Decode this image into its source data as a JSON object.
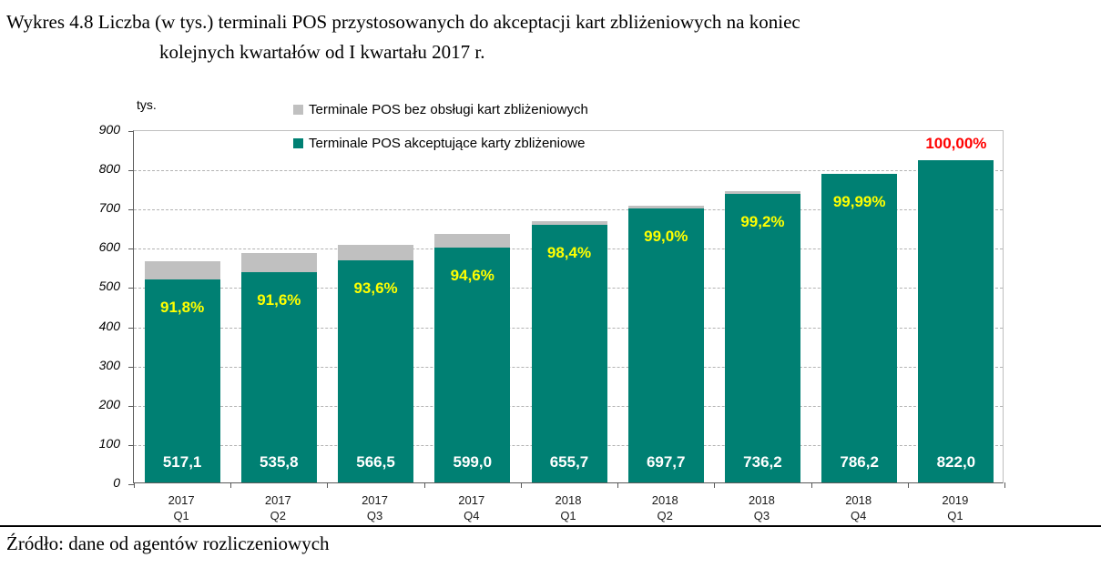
{
  "header": {
    "line1": "Wykres 4.8 Liczba (w tys.) terminali POS przystosowanych do akceptacji kart zbliżeniowych na koniec",
    "line2": "kolejnych kwartałów od I kwartału 2017 r."
  },
  "source": "Źródło: dane od agentów rozliczeniowych",
  "chart_data": {
    "type": "bar",
    "subtype": "stacked",
    "title": "Wykres 4.8 Liczba (w tys.) terminali POS przystosowanych do akceptacji kart zbliżeniowych na koniec kolejnych kwartałów od I kwartału 2017 r.",
    "y_unit": "tys.",
    "ylim": [
      0,
      900
    ],
    "ytick_step": 100,
    "grid": "horizontal-dashed",
    "legend_position": "top-center",
    "categories": [
      [
        "2017",
        "Q1"
      ],
      [
        "2017",
        "Q2"
      ],
      [
        "2017",
        "Q3"
      ],
      [
        "2017",
        "Q4"
      ],
      [
        "2018",
        "Q1"
      ],
      [
        "2018",
        "Q2"
      ],
      [
        "2018",
        "Q3"
      ],
      [
        "2018",
        "Q4"
      ],
      [
        "2019",
        "Q1"
      ]
    ],
    "series": [
      {
        "name": "Terminale POS akceptujące karty zbliżeniowe",
        "color": "#008073",
        "values": [
          517.1,
          535.8,
          566.5,
          599.0,
          655.7,
          697.7,
          736.2,
          786.2,
          822.0
        ]
      },
      {
        "name": "Terminale POS bez obsługi kart zbliżeniowych",
        "color": "#c0c0c0",
        "values": [
          46.2,
          49.2,
          38.7,
          34.2,
          10.7,
          7.0,
          5.9,
          0.1,
          0.0
        ]
      }
    ],
    "value_labels": [
      "517,1",
      "535,8",
      "566,5",
      "599,0",
      "655,7",
      "697,7",
      "736,2",
      "786,2",
      "822,0"
    ],
    "pct_labels": [
      {
        "text": "91,8%",
        "color": "#ffff00",
        "placement": "inside"
      },
      {
        "text": "91,6%",
        "color": "#ffff00",
        "placement": "inside"
      },
      {
        "text": "93,6%",
        "color": "#ffff00",
        "placement": "inside"
      },
      {
        "text": "94,6%",
        "color": "#ffff00",
        "placement": "inside"
      },
      {
        "text": "98,4%",
        "color": "#ffff00",
        "placement": "inside"
      },
      {
        "text": "99,0%",
        "color": "#ffff00",
        "placement": "inside"
      },
      {
        "text": "99,2%",
        "color": "#ffff00",
        "placement": "inside"
      },
      {
        "text": "99,99%",
        "color": "#ffff00",
        "placement": "inside"
      },
      {
        "text": "100,00%",
        "color": "#ff0000",
        "placement": "above"
      }
    ],
    "legend_entries": [
      {
        "label": "Terminale POS bez obsługi kart zbliżeniowych",
        "color": "#c0c0c0"
      },
      {
        "label": "Terminale POS akceptujące karty zbliżeniowe",
        "color": "#008073"
      }
    ]
  }
}
